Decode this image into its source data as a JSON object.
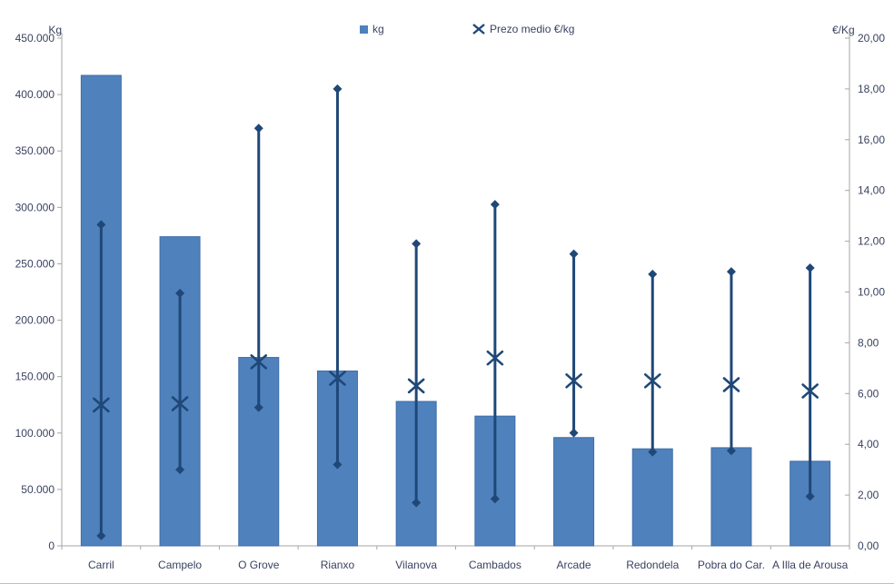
{
  "chart_data": {
    "type": "bar",
    "subtype": "column-with-high-low-average-price-markers",
    "title": "",
    "categories": [
      "Carril",
      "Campelo",
      "O Grove",
      "Rianxo",
      "Vilanova",
      "Cambados",
      "Arcade",
      "Redondela",
      "Pobra do Car.",
      "A Illa de Arousa"
    ],
    "series": [
      {
        "name": "kg",
        "type": "bar",
        "axis": "left",
        "values": [
          417000,
          274000,
          167000,
          155000,
          128000,
          115000,
          96000,
          86000,
          87000,
          75000
        ]
      },
      {
        "name": "Prezo medio €/kg",
        "type": "high-low-average",
        "axis": "right",
        "high": [
          12.65,
          9.95,
          16.45,
          18.0,
          11.9,
          13.45,
          11.5,
          10.7,
          10.8,
          10.95
        ],
        "low": [
          0.4,
          3.0,
          5.45,
          3.2,
          1.7,
          1.85,
          4.45,
          3.7,
          3.75,
          1.95
        ],
        "average": [
          5.55,
          5.6,
          7.25,
          6.6,
          6.3,
          7.4,
          6.5,
          6.5,
          6.35,
          6.1
        ]
      }
    ],
    "left_axis": {
      "title": "Kg",
      "min": 0,
      "max": 450000,
      "step": 50000,
      "tick_labels": [
        "0",
        "50.000",
        "100.000",
        "150.000",
        "200.000",
        "250.000",
        "300.000",
        "350.000",
        "400.000",
        "450.000"
      ]
    },
    "right_axis": {
      "title": "€/Kg",
      "min": 0,
      "max": 20,
      "step": 2,
      "tick_labels": [
        "0,00",
        "2,00",
        "4,00",
        "6,00",
        "8,00",
        "10,00",
        "12,00",
        "14,00",
        "16,00",
        "18,00",
        "20,00"
      ]
    },
    "legend": {
      "position": "top",
      "items": [
        {
          "label": "kg",
          "marker": "square"
        },
        {
          "label": "Prezo medio €/kg",
          "marker": "x"
        }
      ]
    },
    "grid": false,
    "colors": {
      "bar_fill": "#4f81bd",
      "bar_border": "#3f6da8",
      "price_marker": "#1f4878",
      "axis_line": "#a6a6a6",
      "text": "#3a4260",
      "background": "#ffffff"
    }
  }
}
